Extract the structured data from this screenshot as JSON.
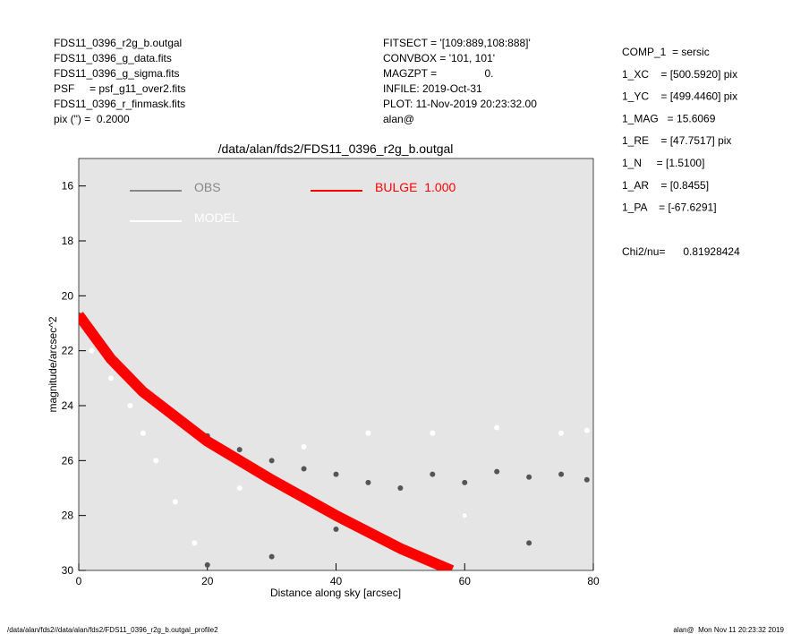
{
  "info_left": [
    "FDS11_0396_r2g_b.outgal",
    "FDS11_0396_g_data.fits",
    "FDS11_0396_g_sigma.fits",
    "PSF     = psf_g11_over2.fits",
    "FDS11_0396_r_finmask.fits",
    "pix (\") =  0.2000"
  ],
  "info_middle": [
    "FITSECT = '[109:889,108:888]'",
    "CONVBOX = '101, 101'",
    "MAGZPT =                0.",
    "INFILE: 2019-Oct-31",
    "PLOT: 11-Nov-2019 20:23:32.00",
    "alan@"
  ],
  "info_right": [
    "COMP_1  = sersic",
    "1_XC    = [500.5920] pix",
    "1_YC    = [499.4460] pix",
    "1_MAG   = 15.6069",
    "1_RE    = [47.7517] pix",
    "1_N     = [1.5100]",
    "1_AR    = [0.8455]",
    "1_PA    = [-67.6291]"
  ],
  "chi2": "Chi2/nu=      0.81928424",
  "footer_left": "/data/alan/fds2//data/alan/fds2/FDS11_0396_r2g_b.outgal_profile2",
  "footer_right": "alan@  Mon Nov 11 20:23:32 2019",
  "chart_data": {
    "type": "scatter",
    "title": "/data/alan/fds2/FDS11_0396_r2g_b.outgal",
    "x_label": "Distance along sky [arcsec]",
    "y_label": "magnitude/arcsec^2",
    "xlim": [
      0,
      80
    ],
    "ylim": [
      30,
      15
    ],
    "xticks": [
      0,
      20,
      40,
      60,
      80
    ],
    "yticks": [
      16,
      18,
      20,
      22,
      24,
      26,
      28,
      30
    ],
    "series": [
      {
        "name": "OBS",
        "color": "#555555",
        "legend_color": "#888888",
        "x": [
          0,
          2,
          4,
          6,
          8,
          10,
          13,
          16,
          20,
          25,
          30,
          35,
          40,
          45,
          50,
          55,
          60,
          65,
          70,
          75,
          79,
          30,
          50,
          70,
          20,
          40,
          60
        ],
        "values": [
          20.7,
          21.4,
          22.1,
          22.6,
          23.1,
          23.5,
          24.1,
          24.6,
          25.1,
          25.6,
          26.0,
          26.3,
          26.5,
          26.8,
          27.0,
          26.5,
          26.8,
          26.4,
          26.6,
          26.5,
          26.7,
          29.5,
          29.2,
          29.0,
          29.8,
          28.5,
          28.0
        ]
      },
      {
        "name": "MODEL",
        "color": "#ffffff",
        "legend_color": "#ffffff",
        "x": [
          2,
          5,
          8,
          10,
          12,
          15,
          18,
          25,
          35,
          45,
          55,
          65,
          75,
          79,
          60
        ],
        "values": [
          22.0,
          23.0,
          24.0,
          25.0,
          26.0,
          27.5,
          29.0,
          27.0,
          25.5,
          25.0,
          25.0,
          24.8,
          25.0,
          24.9,
          28.0
        ]
      },
      {
        "name": "BULGE  1.000",
        "color": "#ff0000",
        "legend_color": "#ff0000",
        "line": true,
        "x": [
          0,
          5,
          10,
          20,
          30,
          40,
          50,
          58
        ],
        "values": [
          20.7,
          22.3,
          23.5,
          25.3,
          26.7,
          28.0,
          29.2,
          30.0
        ]
      }
    ]
  }
}
